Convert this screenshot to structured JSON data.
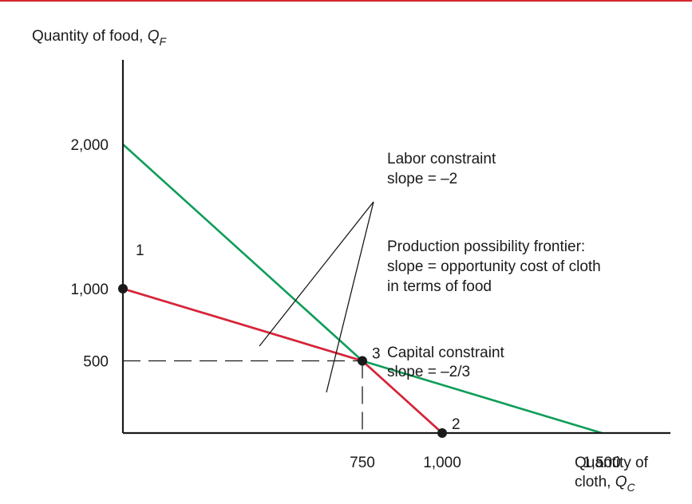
{
  "colors": {
    "top_rule": "#d6282e",
    "axis": "#1a1a1a",
    "labor": "#0f9d58",
    "capital": "#0f9d58",
    "ppf": "#e0203a",
    "point": "#1a1a1a"
  },
  "chart_data": {
    "type": "line",
    "ylabel": {
      "text": "Quantity of food, ",
      "var": "Q",
      "sub": "F"
    },
    "xlabel": {
      "line1": "Quantity of",
      "line2_text": "cloth, ",
      "var": "Q",
      "sub": "C"
    },
    "x_ticks": [
      {
        "value": 750,
        "label": "750"
      },
      {
        "value": 1000,
        "label": "1,000"
      },
      {
        "value": 1500,
        "label": "1,500"
      }
    ],
    "y_ticks": [
      {
        "value": 500,
        "label": "500"
      },
      {
        "value": 1000,
        "label": "1,000"
      },
      {
        "value": 2000,
        "label": "2,000"
      }
    ],
    "series": [
      {
        "key": "labor",
        "points": [
          [
            0,
            2000
          ],
          [
            1000,
            0
          ]
        ]
      },
      {
        "key": "capital",
        "points": [
          [
            0,
            1000
          ],
          [
            1500,
            0
          ]
        ]
      },
      {
        "key": "ppf",
        "points": [
          [
            0,
            1000
          ],
          [
            750,
            500
          ],
          [
            1000,
            0
          ]
        ]
      }
    ],
    "points": [
      {
        "label": "1",
        "x": 0,
        "y": 1000
      },
      {
        "label": "3",
        "x": 750,
        "y": 500
      },
      {
        "label": "2",
        "x": 1000,
        "y": 0
      }
    ],
    "guides": [
      {
        "x": 750,
        "y": 500
      }
    ],
    "annotations": {
      "labor": [
        "Labor constraint",
        "slope = –2"
      ],
      "ppf": [
        "Production possibility frontier:",
        "slope = opportunity cost of cloth",
        "in terms of food"
      ],
      "capital": [
        "Capital constraint",
        "slope = –2/3"
      ]
    }
  }
}
